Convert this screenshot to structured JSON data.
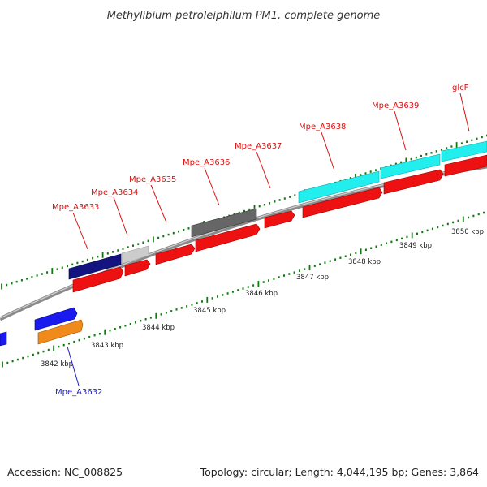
{
  "title": "Methylibium petroleiphilum PM1, complete genome",
  "footer": {
    "accession": "Accession: NC_008825",
    "summary": "Topology: circular; Length: 4,044,195 bp; Genes: 3,864"
  },
  "colors": {
    "cds_red": "#ee1111",
    "rna_cyan": "#22eeee",
    "blue_gene": "#1a1aee",
    "orange_gene": "#f08a1a",
    "navy_gene": "#141480",
    "grey_gene": "#666666",
    "light_grey_gene": "#cccccc",
    "backbone": "#999999",
    "ticks": "#117711",
    "label_red": "#dd1111",
    "label_blue": "#1a1acc"
  },
  "scale_labels": [
    "3842 kbp",
    "3843 kbp",
    "3844 kbp",
    "3845 kbp",
    "3846 kbp",
    "3847 kbp",
    "3848 kbp",
    "3849 kbp",
    "3850 kbp"
  ],
  "gene_labels": [
    {
      "text": "Mpe_A3632",
      "color": "blue"
    },
    {
      "text": "Mpe_A3633",
      "color": "red"
    },
    {
      "text": "Mpe_A3634",
      "color": "red"
    },
    {
      "text": "Mpe_A3635",
      "color": "red"
    },
    {
      "text": "Mpe_A3636",
      "color": "red"
    },
    {
      "text": "Mpe_A3637",
      "color": "red"
    },
    {
      "text": "Mpe_A3638",
      "color": "red"
    },
    {
      "text": "Mpe_A3639",
      "color": "red"
    },
    {
      "text": "glcF",
      "color": "red"
    }
  ]
}
